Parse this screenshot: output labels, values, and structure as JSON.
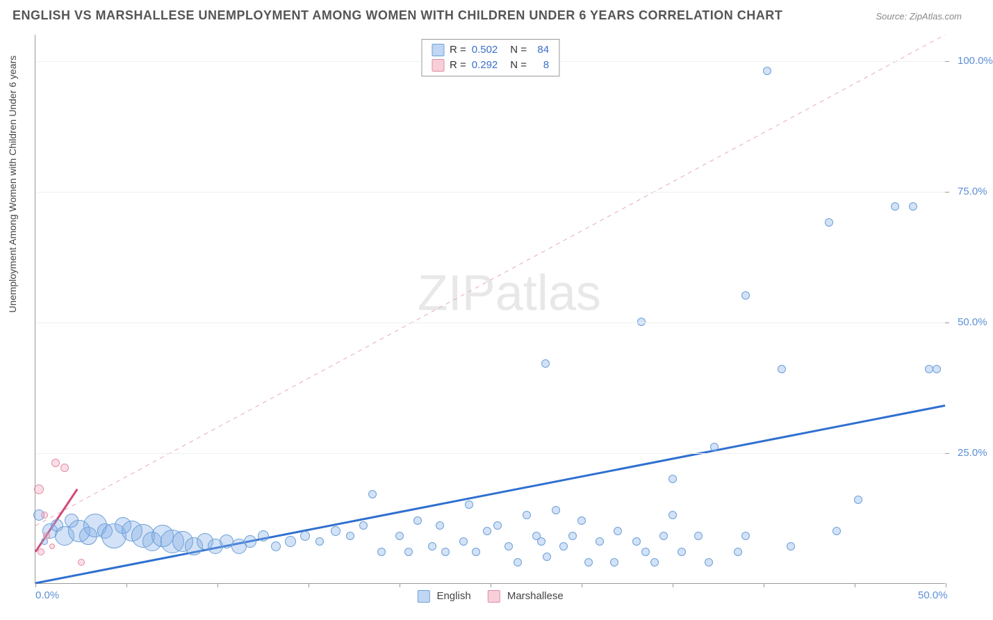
{
  "title": "ENGLISH VS MARSHALLESE UNEMPLOYMENT AMONG WOMEN WITH CHILDREN UNDER 6 YEARS CORRELATION CHART",
  "source_label": "Source: ZipAtlas.com",
  "y_axis_label": "Unemployment Among Women with Children Under 6 years",
  "watermark_zip": "ZIP",
  "watermark_atlas": "atlas",
  "chart": {
    "type": "scatter",
    "xlim": [
      0,
      50
    ],
    "ylim": [
      0,
      105
    ],
    "x_ticks": [
      0,
      50
    ],
    "x_tick_labels": [
      "0.0%",
      "50.0%"
    ],
    "x_minor_tick_step": 5,
    "y_ticks": [
      25,
      50,
      75,
      100
    ],
    "y_tick_labels": [
      "25.0%",
      "50.0%",
      "75.0%",
      "100.0%"
    ],
    "background_color": "#ffffff",
    "grid_color": "#f0f0f0",
    "series": [
      {
        "name": "English",
        "label": "English",
        "color_fill": "rgba(129,173,230,0.35)",
        "color_stroke": "#6b9fd8",
        "trend": {
          "x1": 0,
          "y1": 0,
          "x2": 50,
          "y2": 34,
          "stroke": "#2f6fd0",
          "width": 3,
          "dash": "none"
        },
        "r_value": "0.502",
        "n_value": "84",
        "points": [
          {
            "x": 0.2,
            "y": 13,
            "r": 16
          },
          {
            "x": 0.5,
            "y": 8,
            "r": 10
          },
          {
            "x": 0.8,
            "y": 10,
            "r": 22
          },
          {
            "x": 1.2,
            "y": 11,
            "r": 18
          },
          {
            "x": 1.6,
            "y": 9,
            "r": 28
          },
          {
            "x": 2.0,
            "y": 12,
            "r": 20
          },
          {
            "x": 2.4,
            "y": 10,
            "r": 32
          },
          {
            "x": 2.9,
            "y": 9,
            "r": 26
          },
          {
            "x": 3.3,
            "y": 11,
            "r": 34
          },
          {
            "x": 3.8,
            "y": 10,
            "r": 22
          },
          {
            "x": 4.3,
            "y": 9,
            "r": 36
          },
          {
            "x": 4.8,
            "y": 11,
            "r": 24
          },
          {
            "x": 5.3,
            "y": 10,
            "r": 30
          },
          {
            "x": 5.9,
            "y": 9,
            "r": 34
          },
          {
            "x": 6.4,
            "y": 8,
            "r": 28
          },
          {
            "x": 7.0,
            "y": 9,
            "r": 32
          },
          {
            "x": 7.5,
            "y": 8,
            "r": 34
          },
          {
            "x": 8.1,
            "y": 8,
            "r": 30
          },
          {
            "x": 8.7,
            "y": 7,
            "r": 26
          },
          {
            "x": 9.3,
            "y": 8,
            "r": 24
          },
          {
            "x": 9.9,
            "y": 7,
            "r": 22
          },
          {
            "x": 10.5,
            "y": 8,
            "r": 20
          },
          {
            "x": 11.2,
            "y": 7,
            "r": 22
          },
          {
            "x": 11.8,
            "y": 8,
            "r": 18
          },
          {
            "x": 12.5,
            "y": 9,
            "r": 16
          },
          {
            "x": 13.2,
            "y": 7,
            "r": 14
          },
          {
            "x": 14.0,
            "y": 8,
            "r": 16
          },
          {
            "x": 14.8,
            "y": 9,
            "r": 14
          },
          {
            "x": 15.6,
            "y": 8,
            "r": 12
          },
          {
            "x": 16.5,
            "y": 10,
            "r": 14
          },
          {
            "x": 17.3,
            "y": 9,
            "r": 12
          },
          {
            "x": 18.0,
            "y": 11,
            "r": 12
          },
          {
            "x": 18.5,
            "y": 17,
            "r": 12
          },
          {
            "x": 19.0,
            "y": 6,
            "r": 12
          },
          {
            "x": 20.0,
            "y": 9,
            "r": 12
          },
          {
            "x": 20.5,
            "y": 6,
            "r": 12
          },
          {
            "x": 21.0,
            "y": 12,
            "r": 12
          },
          {
            "x": 21.8,
            "y": 7,
            "r": 12
          },
          {
            "x": 22.2,
            "y": 11,
            "r": 12
          },
          {
            "x": 22.5,
            "y": 6,
            "r": 12
          },
          {
            "x": 23.5,
            "y": 8,
            "r": 12
          },
          {
            "x": 23.8,
            "y": 15,
            "r": 12
          },
          {
            "x": 24.2,
            "y": 6,
            "r": 12
          },
          {
            "x": 24.8,
            "y": 10,
            "r": 12
          },
          {
            "x": 25.4,
            "y": 11,
            "r": 12
          },
          {
            "x": 26.0,
            "y": 7,
            "r": 12
          },
          {
            "x": 26.5,
            "y": 4,
            "r": 12
          },
          {
            "x": 27.0,
            "y": 13,
            "r": 12
          },
          {
            "x": 27.5,
            "y": 9,
            "r": 12
          },
          {
            "x": 28.0,
            "y": 42,
            "r": 12
          },
          {
            "x": 28.1,
            "y": 5,
            "r": 12
          },
          {
            "x": 28.6,
            "y": 14,
            "r": 12
          },
          {
            "x": 29.0,
            "y": 7,
            "r": 12
          },
          {
            "x": 29.5,
            "y": 9,
            "r": 12
          },
          {
            "x": 30.0,
            "y": 12,
            "r": 12
          },
          {
            "x": 30.4,
            "y": 4,
            "r": 12
          },
          {
            "x": 31.0,
            "y": 8,
            "r": 12
          },
          {
            "x": 31.8,
            "y": 4,
            "r": 12
          },
          {
            "x": 32.0,
            "y": 10,
            "r": 12
          },
          {
            "x": 33.3,
            "y": 50,
            "r": 12
          },
          {
            "x": 33.5,
            "y": 6,
            "r": 12
          },
          {
            "x": 34.0,
            "y": 4,
            "r": 12
          },
          {
            "x": 34.5,
            "y": 9,
            "r": 12
          },
          {
            "x": 35.0,
            "y": 13,
            "r": 12
          },
          {
            "x": 35.0,
            "y": 20,
            "r": 12
          },
          {
            "x": 35.5,
            "y": 6,
            "r": 12
          },
          {
            "x": 36.4,
            "y": 9,
            "r": 12
          },
          {
            "x": 37.0,
            "y": 4,
            "r": 12
          },
          {
            "x": 37.3,
            "y": 26,
            "r": 12
          },
          {
            "x": 38.6,
            "y": 6,
            "r": 12
          },
          {
            "x": 39.0,
            "y": 55,
            "r": 12
          },
          {
            "x": 39.0,
            "y": 9,
            "r": 12
          },
          {
            "x": 40.2,
            "y": 98,
            "r": 12
          },
          {
            "x": 41.0,
            "y": 41,
            "r": 12
          },
          {
            "x": 41.5,
            "y": 7,
            "r": 12
          },
          {
            "x": 43.6,
            "y": 69,
            "r": 12
          },
          {
            "x": 44.0,
            "y": 10,
            "r": 12
          },
          {
            "x": 45.2,
            "y": 16,
            "r": 12
          },
          {
            "x": 47.2,
            "y": 72,
            "r": 12
          },
          {
            "x": 48.2,
            "y": 72,
            "r": 12
          },
          {
            "x": 49.1,
            "y": 41,
            "r": 12
          },
          {
            "x": 49.5,
            "y": 41,
            "r": 12
          },
          {
            "x": 27.8,
            "y": 8,
            "r": 12
          },
          {
            "x": 33.0,
            "y": 8,
            "r": 12
          }
        ]
      },
      {
        "name": "Marshallese",
        "label": "Marshallese",
        "color_fill": "rgba(240,160,180,0.35)",
        "color_stroke": "#e28ba4",
        "trend": {
          "x1": 0,
          "y1": 11,
          "x2": 50,
          "y2": 105,
          "stroke": "#e7a8b8",
          "width": 1,
          "dash": "6,6"
        },
        "trend_solid": {
          "x1": 0,
          "y1": 6,
          "x2": 2.3,
          "y2": 18,
          "stroke": "#d04a7a",
          "width": 3
        },
        "r_value": "0.292",
        "n_value": "8",
        "points": [
          {
            "x": 0.3,
            "y": 6,
            "r": 10
          },
          {
            "x": 0.6,
            "y": 9,
            "r": 10
          },
          {
            "x": 0.5,
            "y": 13,
            "r": 10
          },
          {
            "x": 1.1,
            "y": 23,
            "r": 12
          },
          {
            "x": 1.6,
            "y": 22,
            "r": 12
          },
          {
            "x": 0.9,
            "y": 7,
            "r": 8
          },
          {
            "x": 2.5,
            "y": 4,
            "r": 10
          },
          {
            "x": 0.2,
            "y": 18,
            "r": 14
          }
        ]
      }
    ]
  },
  "legend_top": {
    "r_label": "R =",
    "n_label": "N ="
  },
  "legend_bottom": {
    "items": [
      {
        "series": "english",
        "label": "English"
      },
      {
        "series": "marshallese",
        "label": "Marshallese"
      }
    ]
  }
}
